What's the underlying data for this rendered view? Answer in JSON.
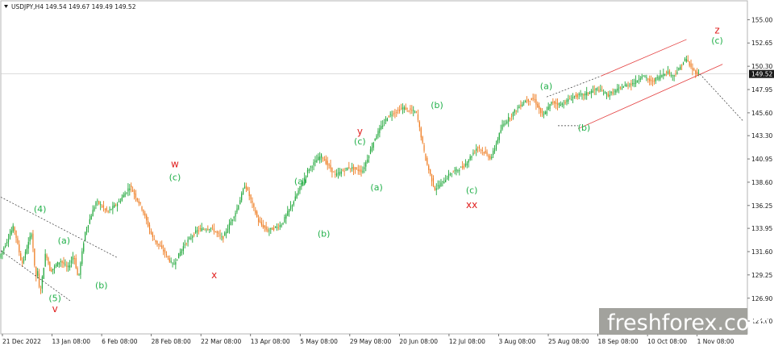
{
  "header": {
    "text": "USDJPY,H4  149.54 149.67 149.49 149.52",
    "arrow": "triangle-down-icon"
  },
  "watermark": {
    "text": "freshforex.com",
    "bg": "#a2a29d"
  },
  "colors": {
    "bull": "#22a83c",
    "bear": "#ee7a1e",
    "wave_green": "#22b04a",
    "wave_red": "#e0201f",
    "channel": "#e33a3a",
    "badge": "#1a1a1a"
  },
  "chart_data": {
    "type": "candlestick",
    "symbol": "USDJPY",
    "timeframe": "H4",
    "title": "USDJPY,H4",
    "last_price": 149.52,
    "ylim": [
      123.3,
      156.9
    ],
    "y_ticks": [
      "155.00",
      "152.65",
      "150.30",
      "147.95",
      "145.60",
      "143.30",
      "140.95",
      "138.60",
      "136.25",
      "133.95",
      "131.60",
      "129.25",
      "126.90",
      "124.60"
    ],
    "x_ticks": [
      "21 Dec 2022",
      "13 Jan 08:00",
      "6 Feb 08:00",
      "28 Feb 08:00",
      "22 Mar 08:00",
      "13 Apr 08:00",
      "5 May 08:00",
      "29 May 08:00",
      "20 Jun 08:00",
      "12 Jul 08:00",
      "3 Aug 08:00",
      "25 Aug 08:00",
      "18 Sep 08:00",
      "10 Oct 08:00",
      "1 Nov 08:00"
    ],
    "price_path": [
      [
        0,
        131.0
      ],
      [
        0.032,
        134.2
      ],
      [
        0.05,
        130.3
      ],
      [
        0.072,
        133.6
      ],
      [
        0.08,
        129.0
      ],
      [
        0.085,
        129.5
      ],
      [
        0.09,
        127.2
      ],
      [
        0.103,
        131.6
      ],
      [
        0.113,
        129.6
      ],
      [
        0.135,
        130.7
      ],
      [
        0.152,
        129.9
      ],
      [
        0.165,
        131.3
      ],
      [
        0.175,
        128.8
      ],
      [
        0.19,
        133.5
      ],
      [
        0.215,
        136.7
      ],
      [
        0.24,
        135.6
      ],
      [
        0.265,
        136.6
      ],
      [
        0.29,
        138.2
      ],
      [
        0.315,
        136.1
      ],
      [
        0.34,
        133.0
      ],
      [
        0.365,
        131.6
      ],
      [
        0.385,
        130.2
      ],
      [
        0.41,
        132.3
      ],
      [
        0.44,
        133.8
      ],
      [
        0.47,
        134.0
      ],
      [
        0.495,
        132.9
      ],
      [
        0.526,
        135.8
      ],
      [
        0.545,
        138.4
      ],
      [
        0.575,
        134.6
      ],
      [
        0.595,
        133.7
      ],
      [
        0.625,
        134.3
      ],
      [
        0.655,
        136.9
      ],
      [
        0.685,
        139.9
      ],
      [
        0.713,
        141.3
      ],
      [
        0.745,
        139.3
      ],
      [
        0.775,
        140.1
      ],
      [
        0.805,
        139.7
      ],
      [
        0.835,
        143.3
      ],
      [
        0.862,
        145.3
      ],
      [
        0.895,
        146.1
      ],
      [
        0.925,
        145.6
      ],
      [
        0.945,
        140.9
      ],
      [
        0.965,
        137.9
      ],
      [
        0.985,
        138.7
      ],
      [
        1.0,
        139.5
      ],
      [
        1.03,
        140.2
      ],
      [
        1.06,
        142.2
      ],
      [
        1.09,
        141.0
      ],
      [
        1.115,
        144.3
      ],
      [
        1.145,
        145.9
      ],
      [
        1.165,
        146.8
      ],
      [
        1.185,
        147.0
      ],
      [
        1.205,
        145.2
      ],
      [
        1.225,
        146.7
      ],
      [
        1.245,
        146.4
      ],
      [
        1.275,
        147.3
      ],
      [
        1.295,
        147.4
      ],
      [
        1.325,
        148.0
      ],
      [
        1.35,
        147.4
      ],
      [
        1.385,
        148.3
      ],
      [
        1.41,
        148.7
      ],
      [
        1.425,
        149.4
      ],
      [
        1.445,
        148.7
      ],
      [
        1.465,
        149.3
      ],
      [
        1.48,
        149.8
      ],
      [
        1.493,
        149.3
      ],
      [
        1.505,
        149.9
      ],
      [
        1.522,
        151.1
      ],
      [
        1.535,
        150.0
      ],
      [
        1.55,
        149.5
      ]
    ],
    "wave_labels": [
      {
        "t": "(4)",
        "x": 0.087,
        "y": 135.6,
        "color": "green"
      },
      {
        "t": "(a)",
        "x": 0.14,
        "y": 132.4,
        "color": "green"
      },
      {
        "t": "(5)",
        "x": 0.12,
        "y": 126.6,
        "color": "green"
      },
      {
        "t": "v",
        "x": 0.12,
        "y": 125.5,
        "color": "red"
      },
      {
        "t": "(b)",
        "x": 0.223,
        "y": 127.9,
        "color": "green"
      },
      {
        "t": "w",
        "x": 0.386,
        "y": 140.1,
        "color": "red"
      },
      {
        "t": "(c)",
        "x": 0.386,
        "y": 138.8,
        "color": "green"
      },
      {
        "t": "x",
        "x": 0.473,
        "y": 128.9,
        "color": "red"
      },
      {
        "t": "(a)",
        "x": 0.664,
        "y": 138.4,
        "color": "green"
      },
      {
        "t": "(b)",
        "x": 0.716,
        "y": 133.1,
        "color": "green"
      },
      {
        "t": "y",
        "x": 0.796,
        "y": 143.4,
        "color": "red"
      },
      {
        "t": "(c)",
        "x": 0.796,
        "y": 142.4,
        "color": "green"
      },
      {
        "t": "(a)",
        "x": 0.833,
        "y": 137.8,
        "color": "green"
      },
      {
        "t": "(b)",
        "x": 0.967,
        "y": 146.1,
        "color": "green"
      },
      {
        "t": "(c)",
        "x": 1.044,
        "y": 137.5,
        "color": "green"
      },
      {
        "t": "xx",
        "x": 1.044,
        "y": 136.0,
        "color": "red"
      },
      {
        "t": "(a)",
        "x": 1.209,
        "y": 148.0,
        "color": "green"
      },
      {
        "t": "(b)",
        "x": 1.293,
        "y": 143.8,
        "color": "green"
      },
      {
        "t": "z",
        "x": 1.588,
        "y": 153.6,
        "color": "red"
      },
      {
        "t": "(c)",
        "x": 1.588,
        "y": 152.6,
        "color": "green"
      }
    ],
    "trend_lines": [
      {
        "style": "dotted",
        "from": [
          0,
          137.1
        ],
        "to": [
          0.258,
          131.0
        ]
      },
      {
        "style": "dotted",
        "from": [
          0,
          131.7
        ],
        "to": [
          0.155,
          126.6
        ]
      },
      {
        "style": "solid-red",
        "from": [
          1.28,
          144.0
        ],
        "to": [
          1.6,
          150.5
        ]
      },
      {
        "style": "solid-red",
        "from": [
          1.33,
          149.3
        ],
        "to": [
          1.52,
          153.0
        ]
      },
      {
        "style": "dotted",
        "from": [
          1.21,
          147.2
        ],
        "to": [
          1.33,
          149.3
        ]
      },
      {
        "style": "dotted",
        "from": [
          1.235,
          144.3
        ],
        "to": [
          1.28,
          144.3
        ]
      },
      {
        "style": "dotted",
        "from": [
          1.55,
          149.5
        ],
        "to": [
          1.645,
          144.8
        ]
      }
    ]
  }
}
